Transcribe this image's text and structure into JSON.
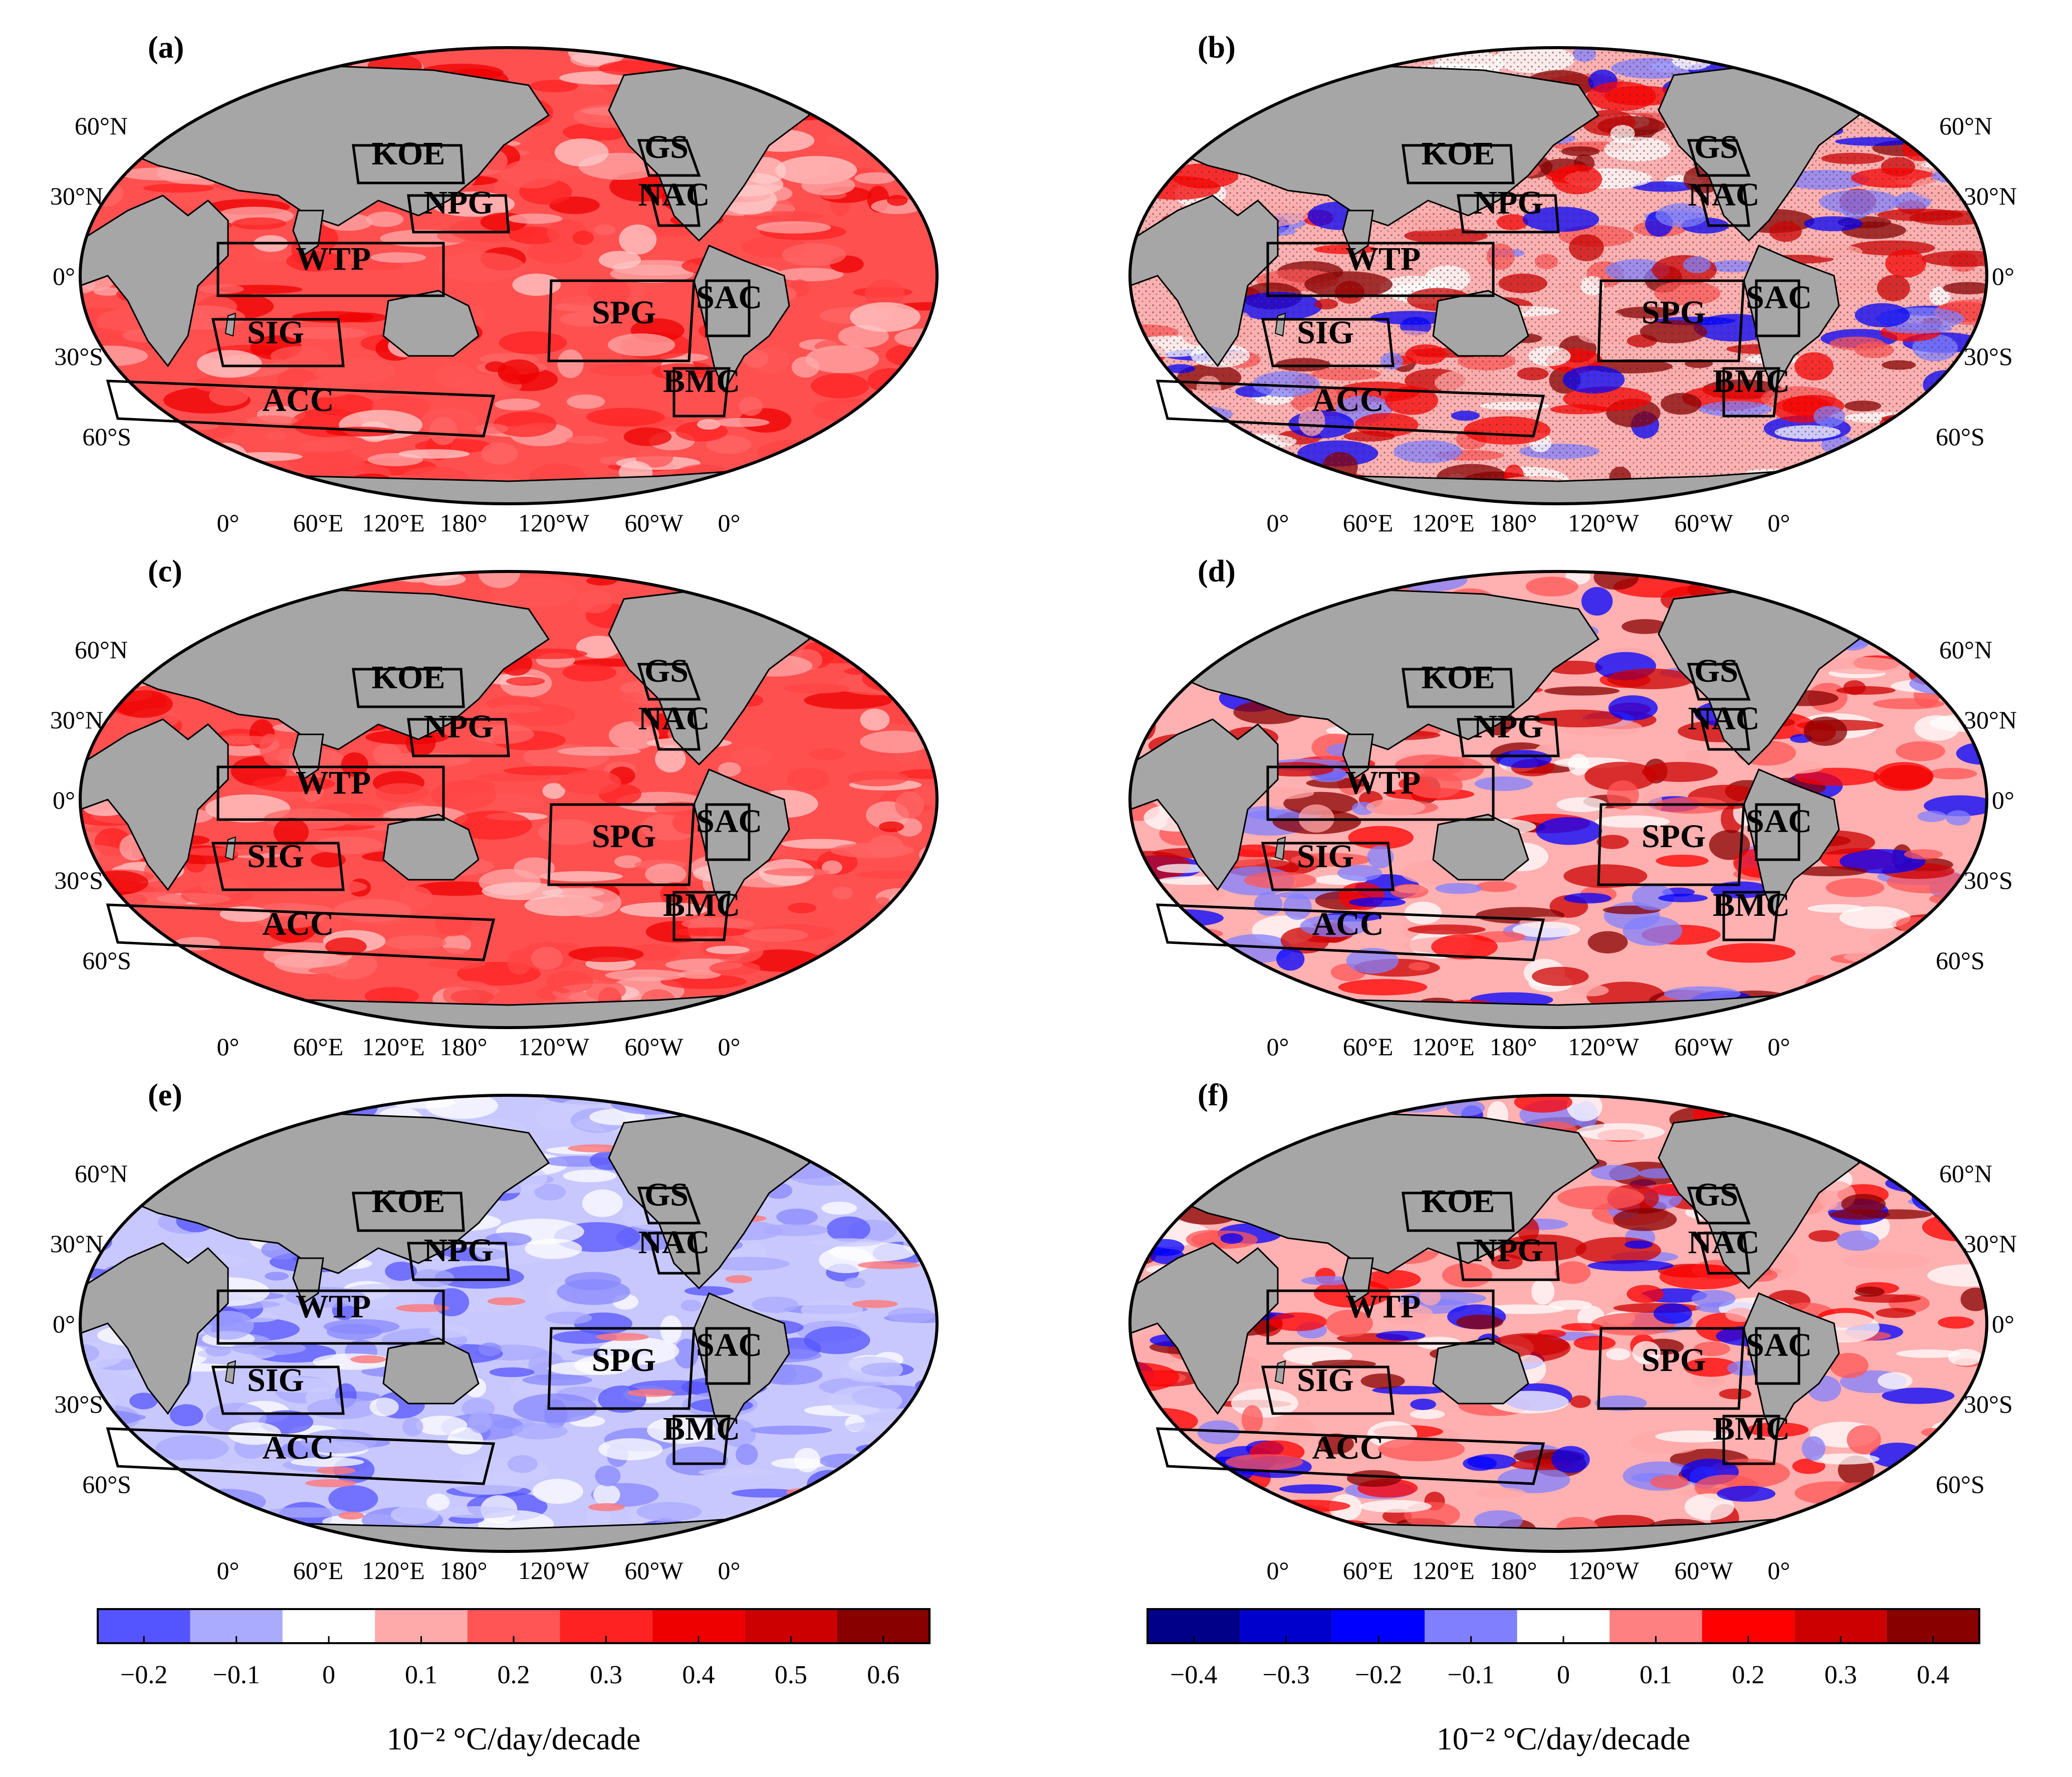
{
  "units_label": "10⁻² °C/day/decade",
  "map_lat_labels": [
    "60°N",
    "30°N",
    "0°",
    "30°S",
    "60°S"
  ],
  "map_lon_labels": [
    "0°",
    "60°E",
    "120°E",
    "180°",
    "120°W",
    "60°W",
    "0°"
  ],
  "region_names": [
    "KOE",
    "NPG",
    "GS",
    "NAC",
    "WTP",
    "SPG",
    "SAC",
    "SIG",
    "BMC",
    "ACC"
  ],
  "panels": [
    {
      "label": "(a)",
      "style": "warm_uniform"
    },
    {
      "label": "(b)",
      "style": "mixed_stippled"
    },
    {
      "label": "(c)",
      "style": "warm_uniform"
    },
    {
      "label": "(d)",
      "style": "mixed"
    },
    {
      "label": "(e)",
      "style": "cool"
    },
    {
      "label": "(f)",
      "style": "mixed_strong"
    }
  ],
  "colorbars": [
    {
      "name": "left",
      "ticks": [
        "−0.2",
        "−0.1",
        "0",
        "0.1",
        "0.2",
        "0.3",
        "0.4",
        "0.5",
        "0.6"
      ],
      "colors": [
        "#5555ff",
        "#aaaaff",
        "#ffffff",
        "#ffaaaa",
        "#ff5555",
        "#ff2222",
        "#ee0000",
        "#cc0000",
        "#880000"
      ],
      "title": "10⁻² °C/day/decade"
    },
    {
      "name": "right",
      "ticks": [
        "−0.4",
        "−0.3",
        "−0.2",
        "−0.1",
        "0",
        "0.1",
        "0.2",
        "0.3",
        "0.4"
      ],
      "colors": [
        "#000088",
        "#0000cc",
        "#0000ff",
        "#8080ff",
        "#ffffff",
        "#ff8080",
        "#ff0000",
        "#cc0000",
        "#880000"
      ],
      "title": "10⁻² °C/day/decade"
    }
  ]
}
